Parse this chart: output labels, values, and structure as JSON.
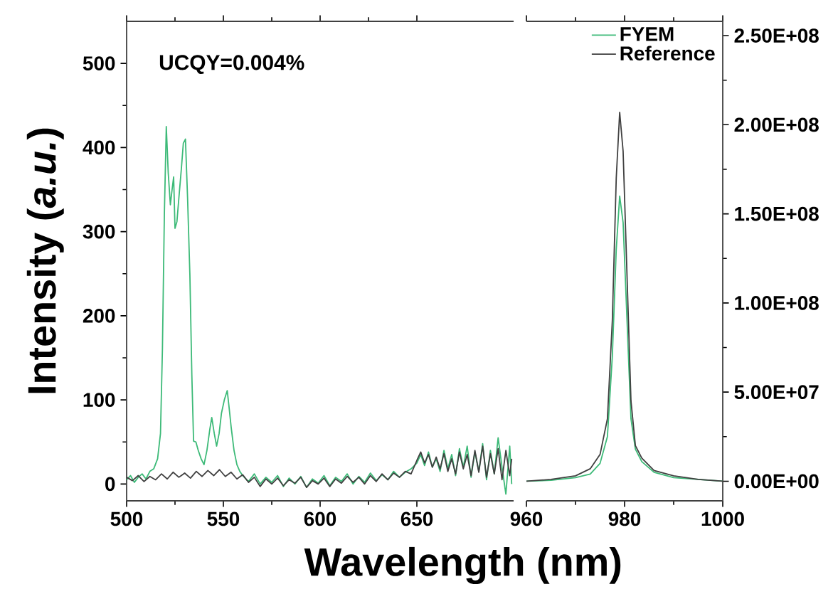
{
  "chart_data": [
    {
      "type": "line",
      "xlabel": "Wavelength (nm)",
      "ylabel": "Intensity (*a.u.*)",
      "annotations": [
        "UCQY=0.004%"
      ],
      "xlim": [
        500,
        700
      ],
      "xticks": [
        500,
        550,
        600,
        650
      ],
      "ylim": [
        -20,
        550
      ],
      "yticks": [
        0,
        100,
        200,
        300,
        400,
        500
      ],
      "series": [
        {
          "color": "#3dba78",
          "x": [
            500,
            502,
            504,
            506,
            508,
            510,
            512,
            514,
            516,
            517.5,
            518.5,
            519.5,
            520.5,
            521.5,
            522.6,
            523.5,
            524.3,
            525,
            526,
            527,
            528.3,
            529.3,
            530.4,
            531.5,
            532.7,
            533.7,
            534.6,
            535.8,
            537,
            538.5,
            540,
            541.5,
            543,
            544,
            545.3,
            546.5,
            547.8,
            549,
            550.5,
            552,
            553,
            554,
            555.5,
            557,
            558.5,
            560,
            563,
            566,
            569,
            572,
            575,
            578,
            581,
            584,
            587,
            590,
            593,
            596,
            599,
            602,
            605,
            608,
            611,
            614,
            617,
            620,
            623,
            626,
            629,
            632,
            635,
            638,
            641,
            644,
            647,
            650,
            652,
            654,
            656,
            658,
            660,
            662,
            664,
            666,
            668,
            670,
            672,
            674,
            676,
            678,
            680,
            682,
            684,
            686,
            688,
            690,
            692,
            694,
            696,
            698,
            699
          ],
          "values": [
            5,
            10,
            2,
            8,
            12,
            6,
            15,
            18,
            30,
            60,
            160,
            320,
            425,
            370,
            332,
            350,
            365,
            304,
            312,
            340,
            375,
            405,
            410,
            340,
            248,
            130,
            51,
            50,
            40,
            30,
            23,
            40,
            65,
            79,
            60,
            45,
            60,
            84,
            100,
            111,
            90,
            68,
            40,
            23,
            15,
            10,
            3,
            12,
            0,
            8,
            2,
            10,
            -3,
            7,
            0,
            9,
            -4,
            6,
            1,
            10,
            -2,
            8,
            3,
            12,
            0,
            9,
            2,
            13,
            4,
            11,
            5,
            15,
            8,
            14,
            18,
            25,
            35,
            22,
            38,
            20,
            30,
            15,
            40,
            18,
            35,
            10,
            42,
            20,
            45,
            8,
            38,
            15,
            48,
            5,
            40,
            12,
            55,
            20,
            -12,
            45,
            0
          ]
        },
        {
          "color": "#404040",
          "x": [
            500,
            503,
            506,
            509,
            512,
            515,
            518,
            521,
            524,
            527,
            530,
            533,
            536,
            539,
            542,
            545,
            548,
            551,
            554,
            557,
            560,
            563,
            566,
            569,
            572,
            575,
            578,
            581,
            584,
            587,
            590,
            593,
            596,
            599,
            602,
            605,
            608,
            611,
            614,
            617,
            620,
            623,
            626,
            629,
            632,
            635,
            638,
            641,
            644,
            647,
            650,
            652,
            654,
            656,
            658,
            660,
            662,
            664,
            666,
            668,
            670,
            672,
            674,
            676,
            678,
            680,
            682,
            684,
            686,
            688,
            690,
            692,
            694,
            696,
            698,
            699
          ],
          "values": [
            8,
            4,
            10,
            3,
            9,
            5,
            12,
            6,
            14,
            8,
            13,
            7,
            15,
            9,
            16,
            10,
            17,
            9,
            14,
            6,
            11,
            2,
            8,
            -3,
            6,
            0,
            7,
            -2,
            5,
            1,
            8,
            -4,
            4,
            0,
            7,
            -3,
            6,
            1,
            9,
            2,
            8,
            0,
            10,
            3,
            12,
            5,
            13,
            8,
            15,
            12,
            28,
            38,
            25,
            35,
            20,
            32,
            18,
            36,
            15,
            30,
            12,
            38,
            18,
            35,
            10,
            40,
            14,
            45,
            8,
            36,
            12,
            42,
            5,
            40,
            10,
            30
          ]
        }
      ]
    },
    {
      "type": "line",
      "legend": "top right",
      "xlim": [
        960,
        1000
      ],
      "xticks": [
        960,
        980,
        1000
      ],
      "y2lim": [
        -11000000,
        258000000
      ],
      "y2ticks": [
        {
          "value": 0,
          "label": "0.00E+00"
        },
        {
          "value": 50000000,
          "label": "5.00E+07"
        },
        {
          "value": 100000000,
          "label": "1.00E+08"
        },
        {
          "value": 150000000,
          "label": "1.50E+08"
        },
        {
          "value": 200000000,
          "label": "2.00E+08"
        },
        {
          "value": 250000000,
          "label": "2.50E+08"
        }
      ],
      "series": [
        {
          "name": "FYEM",
          "color": "#3dba78",
          "axis": "y2",
          "x": [
            960,
            965,
            970,
            973,
            975,
            976.5,
            977.5,
            978.3,
            979,
            979.7,
            980.5,
            981.3,
            982.2,
            983.5,
            986,
            990,
            995,
            1000
          ],
          "values": [
            0,
            500000,
            2000000,
            4000000,
            10000000,
            25000000,
            70000000,
            130000000,
            160000000,
            145000000,
            90000000,
            35000000,
            18000000,
            11000000,
            5000000,
            2000000,
            1000000,
            0
          ]
        },
        {
          "name": "Reference",
          "color": "#404040",
          "axis": "y2",
          "x": [
            960,
            965,
            970,
            973,
            975,
            976.5,
            977.5,
            978.3,
            979,
            979.7,
            980.5,
            981.3,
            982.2,
            983.5,
            986,
            990,
            995,
            1000
          ],
          "values": [
            0,
            1000000,
            3000000,
            7000000,
            15000000,
            35000000,
            90000000,
            170000000,
            207000000,
            185000000,
            115000000,
            45000000,
            20000000,
            13000000,
            6000000,
            3000000,
            1000000,
            0
          ]
        }
      ]
    }
  ]
}
